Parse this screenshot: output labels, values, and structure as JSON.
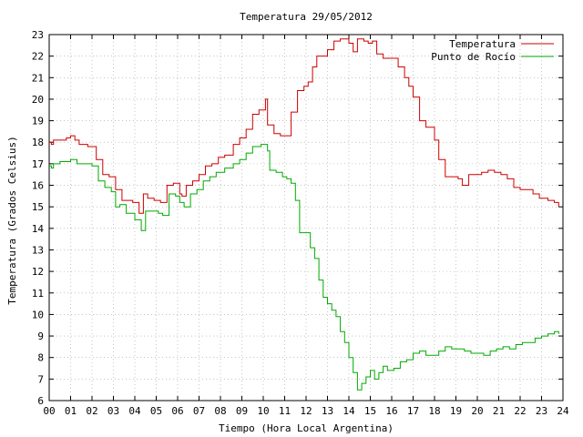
{
  "chart_data": {
    "type": "line",
    "title": "Temperatura 29/05/2012",
    "xlabel": "Tiempo (Hora Local Argentina)",
    "ylabel": "Temperatura (Grados Celsius)",
    "xlim": [
      0,
      24
    ],
    "ylim": [
      6,
      23
    ],
    "x_ticks": [
      "00",
      "01",
      "02",
      "03",
      "04",
      "05",
      "06",
      "07",
      "08",
      "09",
      "10",
      "11",
      "12",
      "13",
      "14",
      "15",
      "16",
      "17",
      "18",
      "19",
      "20",
      "21",
      "22",
      "23",
      "24"
    ],
    "y_ticks": [
      "6",
      "7",
      "8",
      "9",
      "10",
      "11",
      "12",
      "13",
      "14",
      "15",
      "16",
      "17",
      "18",
      "19",
      "20",
      "21",
      "22",
      "23"
    ],
    "grid": true,
    "legend_position": "top-right",
    "series": [
      {
        "name": "Temperatura",
        "color": "#cc0000",
        "points": [
          [
            0.0,
            18.0
          ],
          [
            0.1,
            17.9
          ],
          [
            0.2,
            18.1
          ],
          [
            0.5,
            18.1
          ],
          [
            0.8,
            18.2
          ],
          [
            1.0,
            18.3
          ],
          [
            1.2,
            18.1
          ],
          [
            1.4,
            17.9
          ],
          [
            1.8,
            17.8
          ],
          [
            2.2,
            17.2
          ],
          [
            2.5,
            16.5
          ],
          [
            2.8,
            16.4
          ],
          [
            3.1,
            15.8
          ],
          [
            3.4,
            15.3
          ],
          [
            3.9,
            15.2
          ],
          [
            4.2,
            14.7
          ],
          [
            4.4,
            15.6
          ],
          [
            4.6,
            15.4
          ],
          [
            4.9,
            15.3
          ],
          [
            5.2,
            15.2
          ],
          [
            5.5,
            16.0
          ],
          [
            5.8,
            16.1
          ],
          [
            6.1,
            15.6
          ],
          [
            6.2,
            15.5
          ],
          [
            6.4,
            16.0
          ],
          [
            6.7,
            16.2
          ],
          [
            7.0,
            16.5
          ],
          [
            7.3,
            16.9
          ],
          [
            7.6,
            17.0
          ],
          [
            7.9,
            17.3
          ],
          [
            8.2,
            17.4
          ],
          [
            8.6,
            17.9
          ],
          [
            8.9,
            18.2
          ],
          [
            9.2,
            18.6
          ],
          [
            9.5,
            19.3
          ],
          [
            9.8,
            19.5
          ],
          [
            10.1,
            20.0
          ],
          [
            10.2,
            18.8
          ],
          [
            10.5,
            18.4
          ],
          [
            10.8,
            18.3
          ],
          [
            11.0,
            18.3
          ],
          [
            11.3,
            19.4
          ],
          [
            11.6,
            20.4
          ],
          [
            11.9,
            20.6
          ],
          [
            12.1,
            20.8
          ],
          [
            12.3,
            21.5
          ],
          [
            12.5,
            22.0
          ],
          [
            12.8,
            22.0
          ],
          [
            13.0,
            22.3
          ],
          [
            13.3,
            22.7
          ],
          [
            13.6,
            22.8
          ],
          [
            14.0,
            22.6
          ],
          [
            14.2,
            22.2
          ],
          [
            14.4,
            22.8
          ],
          [
            14.7,
            22.7
          ],
          [
            14.9,
            22.6
          ],
          [
            15.1,
            22.7
          ],
          [
            15.3,
            22.1
          ],
          [
            15.6,
            21.9
          ],
          [
            16.0,
            21.9
          ],
          [
            16.3,
            21.5
          ],
          [
            16.6,
            21.0
          ],
          [
            16.8,
            20.6
          ],
          [
            17.0,
            20.1
          ],
          [
            17.3,
            19.0
          ],
          [
            17.6,
            18.7
          ],
          [
            18.0,
            18.1
          ],
          [
            18.2,
            17.2
          ],
          [
            18.5,
            16.4
          ],
          [
            18.8,
            16.4
          ],
          [
            19.1,
            16.3
          ],
          [
            19.3,
            16.0
          ],
          [
            19.6,
            16.5
          ],
          [
            19.9,
            16.5
          ],
          [
            20.2,
            16.6
          ],
          [
            20.5,
            16.7
          ],
          [
            20.8,
            16.6
          ],
          [
            21.1,
            16.5
          ],
          [
            21.4,
            16.3
          ],
          [
            21.7,
            15.9
          ],
          [
            22.0,
            15.8
          ],
          [
            22.3,
            15.8
          ],
          [
            22.6,
            15.6
          ],
          [
            22.9,
            15.4
          ],
          [
            23.3,
            15.3
          ],
          [
            23.6,
            15.2
          ],
          [
            23.8,
            15.0
          ]
        ]
      },
      {
        "name": "Punto de Rocío",
        "color": "#00aa00",
        "points": [
          [
            0.0,
            16.9
          ],
          [
            0.1,
            16.8
          ],
          [
            0.2,
            17.0
          ],
          [
            0.5,
            17.1
          ],
          [
            0.8,
            17.1
          ],
          [
            1.0,
            17.2
          ],
          [
            1.3,
            17.0
          ],
          [
            1.7,
            17.0
          ],
          [
            2.0,
            16.9
          ],
          [
            2.3,
            16.2
          ],
          [
            2.6,
            15.9
          ],
          [
            2.9,
            15.7
          ],
          [
            3.1,
            15.0
          ],
          [
            3.3,
            15.1
          ],
          [
            3.6,
            14.7
          ],
          [
            4.0,
            14.4
          ],
          [
            4.3,
            13.9
          ],
          [
            4.5,
            14.8
          ],
          [
            4.8,
            14.8
          ],
          [
            5.1,
            14.7
          ],
          [
            5.3,
            14.6
          ],
          [
            5.6,
            15.6
          ],
          [
            5.9,
            15.5
          ],
          [
            6.1,
            15.2
          ],
          [
            6.3,
            15.0
          ],
          [
            6.6,
            15.6
          ],
          [
            6.9,
            15.8
          ],
          [
            7.2,
            16.2
          ],
          [
            7.5,
            16.4
          ],
          [
            7.8,
            16.6
          ],
          [
            8.2,
            16.8
          ],
          [
            8.6,
            17.0
          ],
          [
            8.9,
            17.2
          ],
          [
            9.2,
            17.5
          ],
          [
            9.5,
            17.8
          ],
          [
            9.9,
            17.9
          ],
          [
            10.2,
            17.6
          ],
          [
            10.3,
            16.7
          ],
          [
            10.6,
            16.6
          ],
          [
            10.9,
            16.4
          ],
          [
            11.1,
            16.3
          ],
          [
            11.3,
            16.1
          ],
          [
            11.5,
            15.3
          ],
          [
            11.7,
            13.8
          ],
          [
            12.0,
            13.8
          ],
          [
            12.2,
            13.1
          ],
          [
            12.4,
            12.6
          ],
          [
            12.6,
            11.6
          ],
          [
            12.8,
            10.8
          ],
          [
            13.0,
            10.5
          ],
          [
            13.2,
            10.2
          ],
          [
            13.4,
            9.9
          ],
          [
            13.6,
            9.2
          ],
          [
            13.8,
            8.7
          ],
          [
            14.0,
            8.0
          ],
          [
            14.2,
            7.3
          ],
          [
            14.4,
            6.5
          ],
          [
            14.6,
            6.8
          ],
          [
            14.8,
            7.1
          ],
          [
            15.0,
            7.4
          ],
          [
            15.2,
            7.0
          ],
          [
            15.4,
            7.3
          ],
          [
            15.6,
            7.6
          ],
          [
            15.8,
            7.4
          ],
          [
            16.1,
            7.5
          ],
          [
            16.4,
            7.8
          ],
          [
            16.7,
            7.9
          ],
          [
            17.0,
            8.2
          ],
          [
            17.3,
            8.3
          ],
          [
            17.6,
            8.1
          ],
          [
            18.0,
            8.1
          ],
          [
            18.2,
            8.3
          ],
          [
            18.5,
            8.5
          ],
          [
            18.8,
            8.4
          ],
          [
            19.1,
            8.4
          ],
          [
            19.4,
            8.3
          ],
          [
            19.7,
            8.2
          ],
          [
            20.0,
            8.2
          ],
          [
            20.3,
            8.1
          ],
          [
            20.6,
            8.3
          ],
          [
            20.9,
            8.4
          ],
          [
            21.2,
            8.5
          ],
          [
            21.5,
            8.4
          ],
          [
            21.8,
            8.6
          ],
          [
            22.1,
            8.7
          ],
          [
            22.4,
            8.7
          ],
          [
            22.7,
            8.9
          ],
          [
            23.0,
            9.0
          ],
          [
            23.3,
            9.1
          ],
          [
            23.6,
            9.2
          ],
          [
            23.8,
            9.1
          ]
        ]
      }
    ]
  }
}
